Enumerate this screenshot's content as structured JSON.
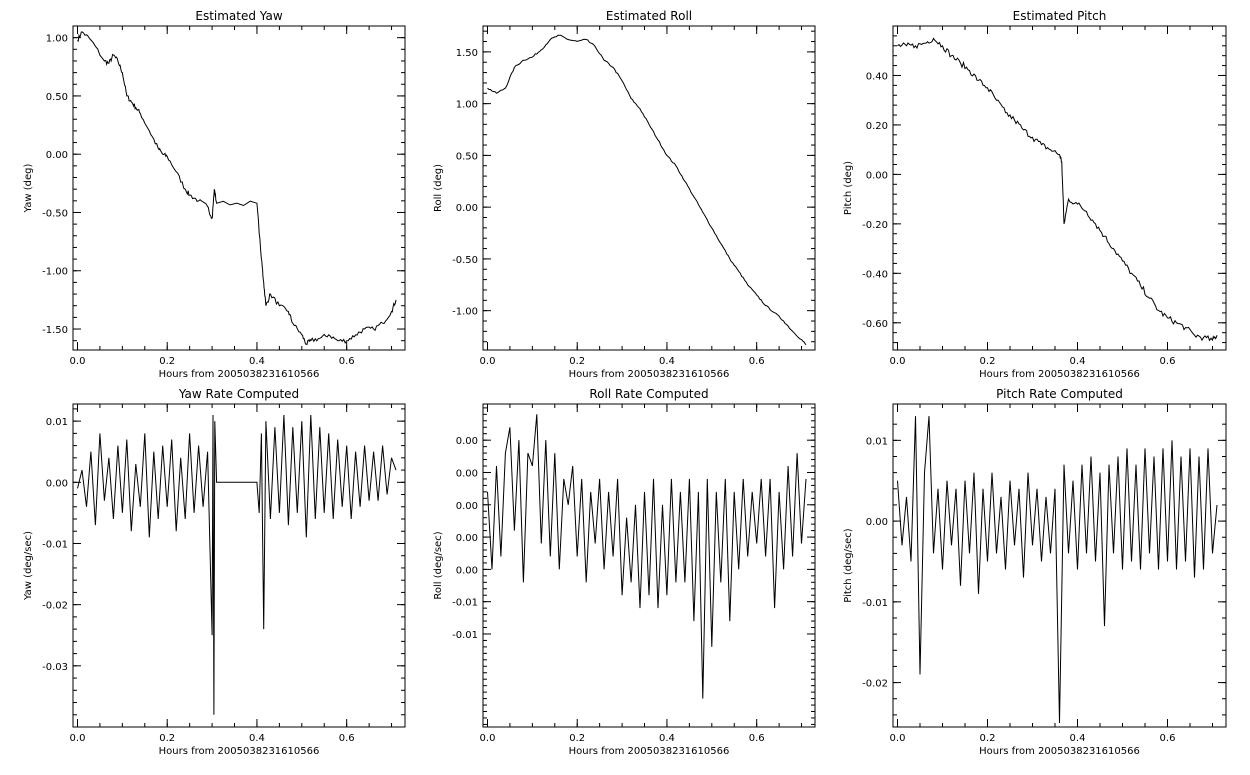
{
  "figure": {
    "background": "#ffffff",
    "line_color": "#000000"
  },
  "chart_data": [
    {
      "type": "line",
      "title": "Estimated Yaw",
      "xlabel": "Hours from 20050382316105​66",
      "ylabel": "Yaw (deg)",
      "xlim": [
        -0.01,
        0.73
      ],
      "ylim": [
        -1.68,
        1.1
      ],
      "xticks": [
        0.0,
        0.2,
        0.4,
        0.6
      ],
      "xtick_labels": [
        "0.0",
        "0.2",
        "0.4",
        "0.6"
      ],
      "yticks": [
        1.0,
        0.5,
        0.0,
        -0.5,
        -1.0,
        -1.5
      ],
      "ytick_labels": [
        "1.00",
        "0.50",
        "0.00",
        "-0.50",
        "-1.00",
        "-1.50"
      ],
      "series": [
        {
          "x": [
            0.0,
            0.01,
            0.03,
            0.06,
            0.07,
            0.08,
            0.09,
            0.1,
            0.11,
            0.12,
            0.13,
            0.14,
            0.16,
            0.18,
            0.19,
            0.2,
            0.22,
            0.24,
            0.25,
            0.27,
            0.29,
            0.3,
            0.305,
            0.31,
            0.4,
            0.41,
            0.415,
            0.42,
            0.43,
            0.45,
            0.47,
            0.48,
            0.5,
            0.51,
            0.52,
            0.54,
            0.56,
            0.58,
            0.6,
            0.62,
            0.64,
            0.66,
            0.68,
            0.7,
            0.71
          ],
          "y": [
            0.98,
            1.05,
            0.98,
            0.8,
            0.78,
            0.85,
            0.8,
            0.7,
            0.5,
            0.45,
            0.4,
            0.35,
            0.2,
            0.05,
            0.0,
            -0.02,
            -0.15,
            -0.3,
            -0.35,
            -0.4,
            -0.45,
            -0.55,
            -0.3,
            -0.42,
            -0.42,
            -0.9,
            -1.1,
            -1.3,
            -1.2,
            -1.3,
            -1.35,
            -1.45,
            -1.55,
            -1.63,
            -1.6,
            -1.58,
            -1.55,
            -1.6,
            -1.6,
            -1.55,
            -1.5,
            -1.5,
            -1.45,
            -1.35,
            -1.25
          ],
          "noise": 0.02
        }
      ]
    },
    {
      "type": "line",
      "title": "Estimated Roll",
      "xlabel": "Hours from 20050382316105​66",
      "ylabel": "Roll (deg)",
      "xlim": [
        -0.01,
        0.73
      ],
      "ylim": [
        -1.38,
        1.75
      ],
      "xticks": [
        0.0,
        0.2,
        0.4,
        0.6
      ],
      "xtick_labels": [
        "0.0",
        "0.2",
        "0.4",
        "0.6"
      ],
      "yticks": [
        1.5,
        1.0,
        0.5,
        0.0,
        -0.5,
        -1.0
      ],
      "ytick_labels": [
        "1.50",
        "1.00",
        "0.50",
        "0.00",
        "-0.50",
        "-1.00"
      ],
      "series": [
        {
          "x": [
            0.0,
            0.02,
            0.04,
            0.06,
            0.08,
            0.1,
            0.12,
            0.14,
            0.16,
            0.18,
            0.2,
            0.22,
            0.24,
            0.26,
            0.28,
            0.3,
            0.32,
            0.34,
            0.36,
            0.38,
            0.4,
            0.42,
            0.44,
            0.46,
            0.48,
            0.5,
            0.52,
            0.54,
            0.56,
            0.58,
            0.6,
            0.62,
            0.64,
            0.66,
            0.68,
            0.7,
            0.71
          ],
          "y": [
            1.15,
            1.1,
            1.15,
            1.35,
            1.42,
            1.45,
            1.52,
            1.62,
            1.66,
            1.62,
            1.6,
            1.62,
            1.55,
            1.42,
            1.35,
            1.22,
            1.05,
            0.95,
            0.8,
            0.65,
            0.5,
            0.4,
            0.25,
            0.1,
            -0.05,
            -0.2,
            -0.35,
            -0.5,
            -0.62,
            -0.75,
            -0.85,
            -0.95,
            -1.02,
            -1.1,
            -1.2,
            -1.28,
            -1.33
          ],
          "noise": 0.008
        }
      ]
    },
    {
      "type": "line",
      "title": "Estimated Pitch",
      "xlabel": "Hours from 20050382316105​66",
      "ylabel": "Pitch (deg)",
      "xlim": [
        -0.01,
        0.73
      ],
      "ylim": [
        -0.71,
        0.6
      ],
      "xticks": [
        0.0,
        0.2,
        0.4,
        0.6
      ],
      "xtick_labels": [
        "0.0",
        "0.2",
        "0.4",
        "0.6"
      ],
      "yticks": [
        0.4,
        0.2,
        0.0,
        -0.2,
        -0.4,
        -0.6
      ],
      "ytick_labels": [
        "0.40",
        "0.20",
        "0.00",
        "-0.20",
        "-0.40",
        "-0.60"
      ],
      "series": [
        {
          "x": [
            0.0,
            0.02,
            0.04,
            0.06,
            0.08,
            0.1,
            0.12,
            0.14,
            0.16,
            0.18,
            0.2,
            0.22,
            0.24,
            0.26,
            0.28,
            0.3,
            0.32,
            0.34,
            0.36,
            0.365,
            0.37,
            0.38,
            0.4,
            0.42,
            0.44,
            0.46,
            0.48,
            0.5,
            0.52,
            0.54,
            0.56,
            0.58,
            0.6,
            0.62,
            0.64,
            0.66,
            0.68,
            0.7,
            0.71
          ],
          "y": [
            0.52,
            0.52,
            0.52,
            0.53,
            0.55,
            0.52,
            0.48,
            0.45,
            0.42,
            0.38,
            0.35,
            0.3,
            0.25,
            0.22,
            0.18,
            0.15,
            0.12,
            0.1,
            0.08,
            0.05,
            -0.2,
            -0.1,
            -0.12,
            -0.15,
            -0.2,
            -0.25,
            -0.3,
            -0.35,
            -0.4,
            -0.45,
            -0.5,
            -0.55,
            -0.58,
            -0.6,
            -0.62,
            -0.65,
            -0.66,
            -0.67,
            -0.65
          ],
          "noise": 0.012
        }
      ]
    },
    {
      "type": "line",
      "title": "Yaw Rate Computed",
      "xlabel": "Hours from 20050382316105​66",
      "ylabel": "Yaw (deg/sec)",
      "xlim": [
        -0.01,
        0.73
      ],
      "ylim": [
        -0.04,
        0.0128
      ],
      "xticks": [
        0.0,
        0.2,
        0.4,
        0.6
      ],
      "xtick_labels": [
        "0.0",
        "0.2",
        "0.4",
        "0.6"
      ],
      "yticks": [
        0.01,
        0.0,
        -0.01,
        -0.02,
        -0.03
      ],
      "ytick_labels": [
        "0.01",
        "0.00",
        "-0.01",
        "-0.02",
        "-0.03"
      ],
      "series": [
        {
          "x": [
            0.0,
            0.01,
            0.02,
            0.03,
            0.04,
            0.05,
            0.06,
            0.07,
            0.08,
            0.09,
            0.1,
            0.11,
            0.12,
            0.13,
            0.14,
            0.15,
            0.16,
            0.17,
            0.18,
            0.19,
            0.2,
            0.21,
            0.22,
            0.23,
            0.24,
            0.25,
            0.26,
            0.27,
            0.28,
            0.29,
            0.3,
            0.302,
            0.304,
            0.306,
            0.31,
            0.4,
            0.405,
            0.41,
            0.415,
            0.42,
            0.43,
            0.44,
            0.45,
            0.46,
            0.47,
            0.48,
            0.49,
            0.5,
            0.51,
            0.52,
            0.53,
            0.54,
            0.55,
            0.56,
            0.57,
            0.58,
            0.59,
            0.6,
            0.61,
            0.62,
            0.63,
            0.64,
            0.65,
            0.66,
            0.67,
            0.68,
            0.69,
            0.7,
            0.71
          ],
          "y": [
            -0.001,
            0.002,
            -0.004,
            0.005,
            -0.007,
            0.008,
            -0.003,
            0.004,
            -0.006,
            0.006,
            -0.005,
            0.007,
            -0.008,
            0.003,
            -0.004,
            0.008,
            -0.009,
            0.005,
            -0.006,
            0.006,
            -0.004,
            0.007,
            -0.008,
            0.004,
            -0.006,
            0.008,
            -0.005,
            0.006,
            -0.004,
            0.005,
            -0.025,
            0.011,
            -0.038,
            0.01,
            0.0,
            0.0,
            -0.005,
            0.008,
            -0.024,
            0.01,
            -0.006,
            0.009,
            -0.005,
            0.011,
            -0.007,
            0.009,
            -0.005,
            0.01,
            -0.009,
            0.011,
            -0.006,
            0.009,
            -0.005,
            0.008,
            -0.006,
            0.007,
            -0.004,
            0.006,
            -0.006,
            0.005,
            -0.004,
            0.006,
            -0.003,
            0.005,
            -0.003,
            0.006,
            -0.002,
            0.004,
            0.002
          ],
          "noise": 0.0
        }
      ]
    },
    {
      "type": "line",
      "title": "Roll Rate Computed",
      "xlabel": "Hours from 20050382316105​66",
      "ylabel": "Roll (deg/sec)",
      "xlim": [
        -0.01,
        0.73
      ],
      "ylim": [
        -0.0172,
        0.0078
      ],
      "xticks": [
        0.0,
        0.2,
        0.4,
        0.6
      ],
      "xtick_labels": [
        "0.0",
        "0.2",
        "0.4",
        "0.6"
      ],
      "yticks": [
        0.005,
        0.0025,
        0.0,
        -0.0025,
        -0.005,
        -0.0075,
        -0.01
      ],
      "ytick_labels": [
        "0.00",
        "0.00",
        "0.00",
        "0.00",
        "0.00",
        "-0.01",
        "-0.01"
      ],
      "series": [
        {
          "x": [
            0.0,
            0.01,
            0.02,
            0.03,
            0.04,
            0.05,
            0.06,
            0.07,
            0.08,
            0.09,
            0.1,
            0.11,
            0.12,
            0.13,
            0.14,
            0.15,
            0.16,
            0.17,
            0.18,
            0.19,
            0.2,
            0.21,
            0.22,
            0.23,
            0.24,
            0.25,
            0.26,
            0.27,
            0.28,
            0.29,
            0.3,
            0.31,
            0.32,
            0.33,
            0.34,
            0.35,
            0.36,
            0.37,
            0.38,
            0.39,
            0.4,
            0.41,
            0.42,
            0.43,
            0.44,
            0.45,
            0.46,
            0.47,
            0.48,
            0.49,
            0.5,
            0.51,
            0.52,
            0.53,
            0.54,
            0.55,
            0.56,
            0.57,
            0.58,
            0.59,
            0.6,
            0.61,
            0.62,
            0.63,
            0.64,
            0.65,
            0.66,
            0.67,
            0.68,
            0.69,
            0.7,
            0.71
          ],
          "y": [
            0.001,
            -0.005,
            0.003,
            -0.004,
            0.004,
            0.006,
            -0.002,
            0.005,
            -0.006,
            0.004,
            0.003,
            0.007,
            -0.003,
            0.005,
            -0.004,
            0.004,
            -0.005,
            0.002,
            0.0,
            0.003,
            -0.004,
            0.002,
            -0.006,
            0.001,
            -0.003,
            0.002,
            -0.005,
            0.001,
            -0.004,
            0.002,
            -0.007,
            -0.001,
            -0.006,
            0.0,
            -0.008,
            0.001,
            -0.007,
            0.002,
            -0.008,
            0.0,
            -0.007,
            0.002,
            -0.006,
            0.001,
            -0.006,
            0.002,
            -0.009,
            0.001,
            -0.015,
            0.002,
            -0.011,
            0.001,
            -0.006,
            0.002,
            -0.009,
            0.001,
            -0.005,
            0.002,
            -0.004,
            0.001,
            -0.003,
            0.002,
            -0.004,
            0.002,
            -0.008,
            0.001,
            -0.005,
            0.003,
            -0.004,
            0.004,
            -0.003,
            0.002
          ],
          "noise": 0.0
        }
      ]
    },
    {
      "type": "line",
      "title": "Pitch Rate Computed",
      "xlabel": "Hours from 20050382316105​66",
      "ylabel": "Pitch (deg/sec)",
      "xlim": [
        -0.01,
        0.73
      ],
      "ylim": [
        -0.0255,
        0.0145
      ],
      "xticks": [
        0.0,
        0.2,
        0.4,
        0.6
      ],
      "xtick_labels": [
        "0.0",
        "0.2",
        "0.4",
        "0.6"
      ],
      "yticks": [
        0.01,
        0.0,
        -0.01,
        -0.02
      ],
      "ytick_labels": [
        "0.01",
        "0.00",
        "-0.01",
        "-0.02"
      ],
      "series": [
        {
          "x": [
            0.0,
            0.01,
            0.02,
            0.03,
            0.04,
            0.05,
            0.06,
            0.07,
            0.08,
            0.09,
            0.1,
            0.11,
            0.12,
            0.13,
            0.14,
            0.15,
            0.16,
            0.17,
            0.18,
            0.19,
            0.2,
            0.21,
            0.22,
            0.23,
            0.24,
            0.25,
            0.26,
            0.27,
            0.28,
            0.29,
            0.3,
            0.31,
            0.32,
            0.33,
            0.34,
            0.35,
            0.36,
            0.37,
            0.38,
            0.39,
            0.4,
            0.41,
            0.42,
            0.43,
            0.44,
            0.45,
            0.46,
            0.47,
            0.48,
            0.49,
            0.5,
            0.51,
            0.52,
            0.53,
            0.54,
            0.55,
            0.56,
            0.57,
            0.58,
            0.59,
            0.6,
            0.61,
            0.62,
            0.63,
            0.64,
            0.65,
            0.66,
            0.67,
            0.68,
            0.69,
            0.7,
            0.71
          ],
          "y": [
            0.005,
            -0.003,
            0.003,
            -0.005,
            0.013,
            -0.019,
            0.006,
            0.013,
            -0.004,
            0.004,
            -0.006,
            0.005,
            -0.003,
            0.004,
            -0.008,
            0.005,
            -0.004,
            0.006,
            -0.009,
            0.004,
            -0.005,
            0.006,
            -0.004,
            0.003,
            -0.006,
            0.005,
            -0.003,
            0.004,
            -0.007,
            0.006,
            -0.003,
            0.004,
            -0.005,
            0.003,
            -0.004,
            0.004,
            -0.025,
            0.007,
            -0.004,
            0.005,
            -0.006,
            0.007,
            -0.004,
            0.008,
            -0.005,
            0.006,
            -0.013,
            0.007,
            -0.004,
            0.008,
            -0.006,
            0.009,
            -0.005,
            0.007,
            -0.006,
            0.009,
            -0.004,
            0.008,
            -0.006,
            0.009,
            -0.005,
            0.01,
            -0.006,
            0.008,
            -0.005,
            0.009,
            -0.007,
            0.008,
            -0.006,
            0.009,
            -0.004,
            0.002
          ],
          "noise": 0.0
        }
      ]
    }
  ]
}
